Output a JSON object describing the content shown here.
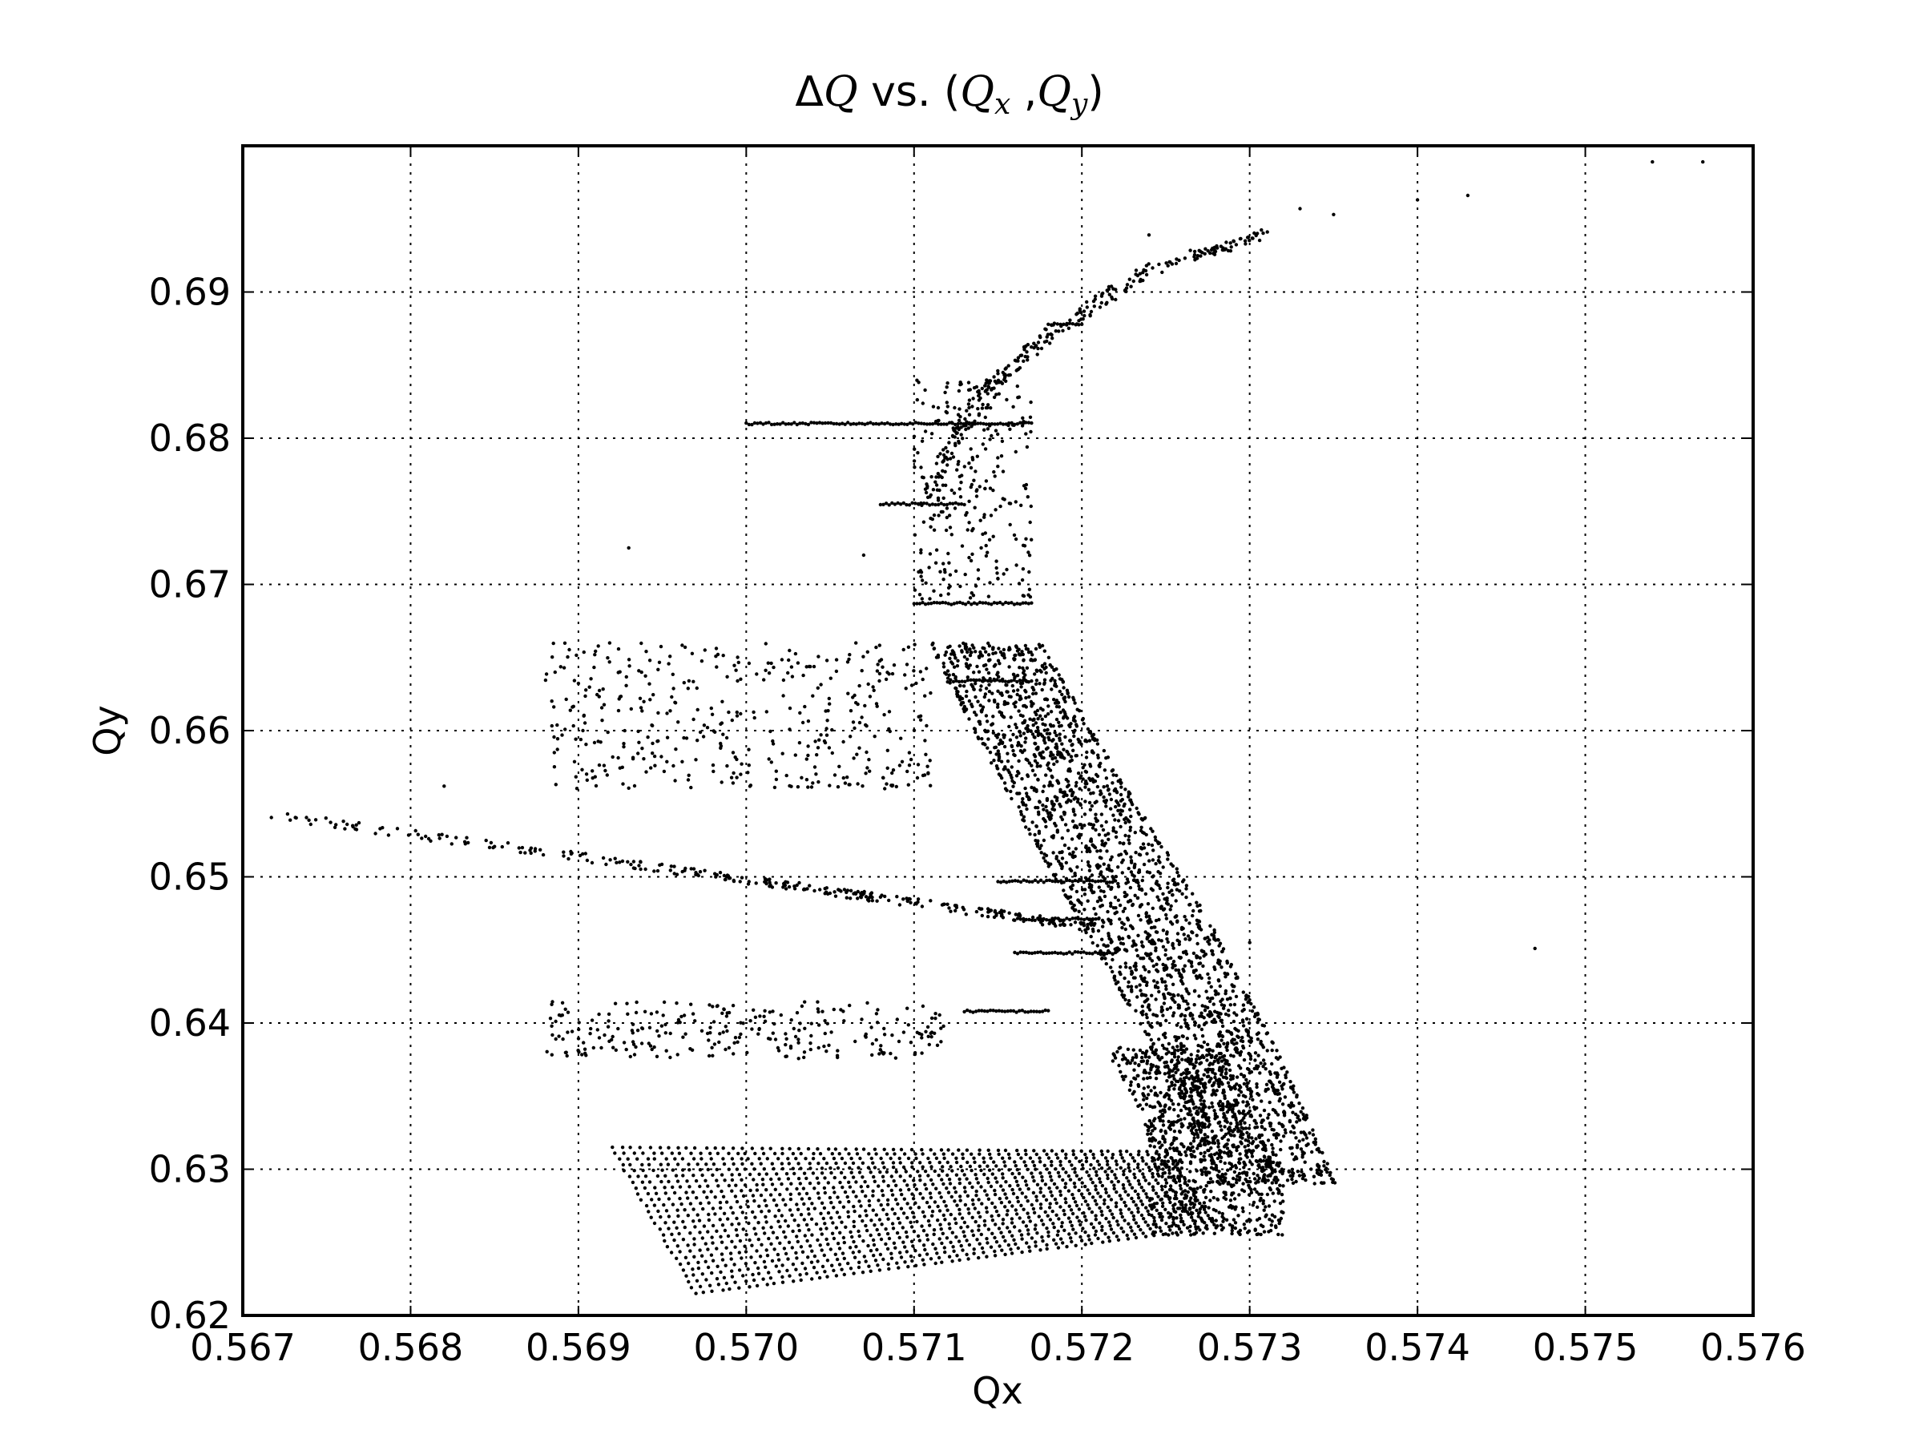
{
  "chart_data": {
    "type": "scatter",
    "title": {
      "delta": "Δ",
      "q": "Q",
      "vs": " vs. (",
      "qx_base": "Q",
      "qx_sub": "x",
      "comma": " ,",
      "qy_base": "Q",
      "qy_sub": "y",
      "close": ")"
    },
    "xlabel": "Qx",
    "ylabel": "Qy",
    "xlim": [
      0.567,
      0.576
    ],
    "ylim": [
      0.62,
      0.7
    ],
    "xticks": [
      0.567,
      0.568,
      0.569,
      0.57,
      0.571,
      0.572,
      0.573,
      0.574,
      0.575,
      0.576
    ],
    "xtick_labels": [
      "0.567",
      "0.568",
      "0.569",
      "0.570",
      "0.571",
      "0.572",
      "0.573",
      "0.574",
      "0.575",
      "0.576"
    ],
    "yticks": [
      0.62,
      0.63,
      0.64,
      0.65,
      0.66,
      0.67,
      0.68,
      0.69
    ],
    "ytick_labels": [
      "0.62",
      "0.63",
      "0.64",
      "0.65",
      "0.66",
      "0.67",
      "0.68",
      "0.69"
    ],
    "grid": true,
    "marker_color": "#000000",
    "features": {
      "diagonal_stripes": {
        "start": [
          0.5692,
          0.6315
        ],
        "end_vertex": [
          0.5697,
          0.6215
        ],
        "corner": [
          0.5728,
          0.6272
        ],
        "count": 60
      },
      "main_band": {
        "inner_edge": [
          [
            0.5711,
            0.666
          ],
          [
            0.5716,
            0.655
          ],
          [
            0.5721,
            0.645
          ],
          [
            0.5726,
            0.635
          ],
          [
            0.5728,
            0.628
          ]
        ],
        "outer_edge": [
          [
            0.5717,
            0.667
          ],
          [
            0.5722,
            0.657
          ],
          [
            0.5727,
            0.648
          ],
          [
            0.5732,
            0.637
          ],
          [
            0.5735,
            0.629
          ]
        ]
      },
      "upper_curve": [
        [
          0.5711,
          0.676
        ],
        [
          0.5714,
          0.683
        ],
        [
          0.5718,
          0.687
        ],
        [
          0.5724,
          0.6915
        ],
        [
          0.5731,
          0.694
        ]
      ],
      "horizontal_lines": [
        {
          "y": 0.681,
          "x": [
            0.57,
            0.5717
          ]
        },
        {
          "y": 0.6755,
          "x": [
            0.5708,
            0.5713
          ]
        },
        {
          "y": 0.6687,
          "x": [
            0.571,
            0.5717
          ]
        },
        {
          "y": 0.6634,
          "x": [
            0.5712,
            0.5717
          ]
        },
        {
          "y": 0.6497,
          "x": [
            0.5715,
            0.5722
          ]
        },
        {
          "y": 0.6471,
          "x": [
            0.5716,
            0.5721
          ]
        },
        {
          "y": 0.6448,
          "x": [
            0.5716,
            0.5722
          ]
        },
        {
          "y": 0.6408,
          "x": [
            0.5713,
            0.5718
          ]
        },
        {
          "y": 0.6878,
          "x": [
            0.5718,
            0.572
          ]
        }
      ],
      "diagonal_tail": {
        "from": [
          0.567,
          0.6545
        ],
        "to": [
          0.5721,
          0.6465
        ]
      },
      "scatter_clouds": [
        {
          "x": [
            0.5688,
            0.5711
          ],
          "y": [
            0.656,
            0.666
          ],
          "n": 420
        },
        {
          "x": [
            0.5688,
            0.5712
          ],
          "y": [
            0.6375,
            0.6415
          ],
          "n": 260
        }
      ],
      "outliers": [
        [
          0.5747,
          0.6451
        ],
        [
          0.573,
          0.6455
        ],
        [
          0.574,
          0.6963
        ],
        [
          0.5743,
          0.6966
        ],
        [
          0.5735,
          0.6953
        ],
        [
          0.5733,
          0.6957
        ],
        [
          0.5754,
          0.6989
        ],
        [
          0.5757,
          0.6989
        ],
        [
          0.5724,
          0.6939
        ],
        [
          0.5707,
          0.672
        ],
        [
          0.5714,
          0.6725
        ],
        [
          0.5693,
          0.6725
        ],
        [
          0.5682,
          0.6562
        ]
      ]
    }
  }
}
